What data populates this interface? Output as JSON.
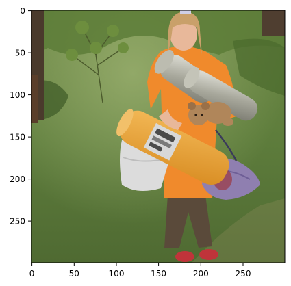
{
  "image": {
    "description_free": true,
    "axes": {
      "x_ticks": [
        "0",
        "50",
        "100",
        "150",
        "200",
        "250"
      ],
      "y_ticks": [
        "0",
        "50",
        "100",
        "150",
        "200",
        "250"
      ],
      "x_range": [
        0,
        300
      ],
      "y_range": [
        0,
        300
      ],
      "y_inverted": true
    },
    "colors": {
      "grass_dark": "#3f5a2a",
      "grass_mid": "#5e7d3c",
      "grass_light": "#8fa665",
      "tree_trunk": "#4a3a2c",
      "shirt_orange": "#f08a2c",
      "skin": "#e8b89a",
      "hair": "#c9a06a",
      "foam_roll": "#9a9a8c",
      "foam_roll_light": "#d2d2c8",
      "orange_bag": "#e9a437",
      "white_bag": "#dcdcdc",
      "purple_bag": "#8f7fb0",
      "teddy": "#b0865a",
      "trousers": "#5a4a3a",
      "shoe_red": "#c0343a",
      "frame": "#000000"
    }
  }
}
